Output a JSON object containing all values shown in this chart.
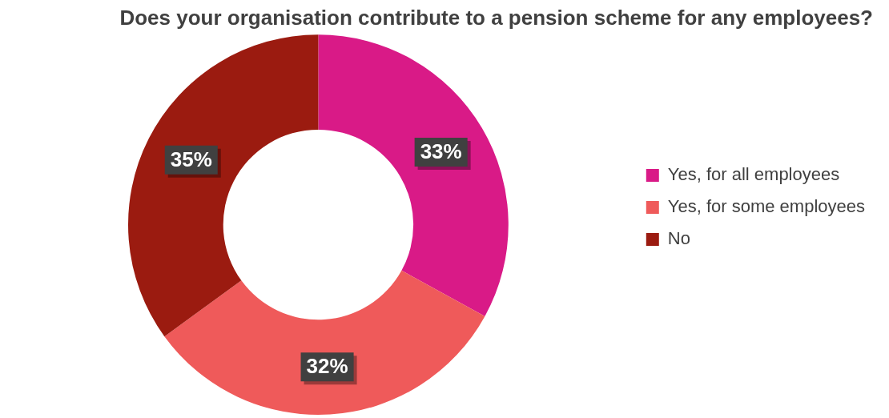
{
  "chart_data": {
    "type": "donut",
    "title": "Does your organisation contribute to a pension scheme for any employees?",
    "categories": [
      "Yes, for all employees",
      "Yes, for some employees",
      "No"
    ],
    "values": [
      33,
      32,
      35
    ],
    "colors": [
      "#d91a87",
      "#ef5a5a",
      "#9b1b10"
    ],
    "value_labels": [
      "33%",
      "32%",
      "35%"
    ],
    "legend": "right"
  }
}
